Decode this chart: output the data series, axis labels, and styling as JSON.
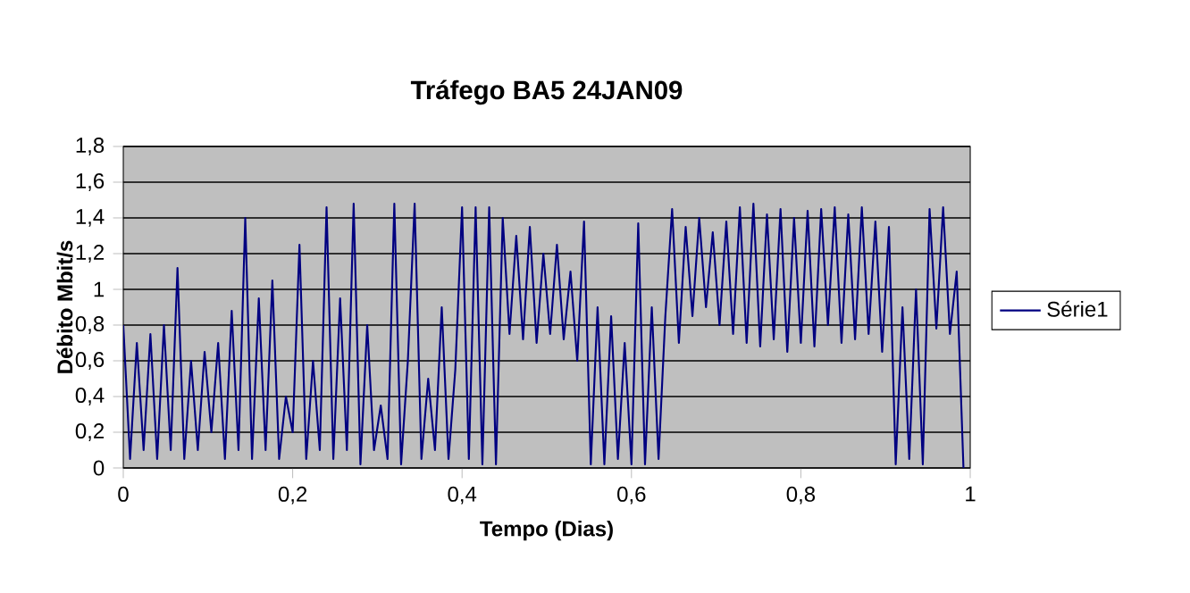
{
  "chart_data": {
    "type": "line",
    "title": "Tráfego BA5 24JAN09",
    "xlabel": "Tempo (Dias)",
    "ylabel": "Débito Mbit/s",
    "xlim": [
      0,
      1
    ],
    "ylim": [
      0,
      1.8
    ],
    "xticks": [
      0,
      {
        "value": 0.2,
        "label": "0,2"
      },
      {
        "value": 0.4,
        "label": "0,4"
      },
      {
        "value": 0.6,
        "label": "0,6"
      },
      {
        "value": 0.8,
        "label": "0,8"
      },
      1
    ],
    "yticks": [
      0,
      {
        "value": 0.2,
        "label": "0,2"
      },
      {
        "value": 0.4,
        "label": "0,4"
      },
      {
        "value": 0.6,
        "label": "0,6"
      },
      {
        "value": 0.8,
        "label": "0,8"
      },
      1,
      {
        "value": 1.2,
        "label": "1,2"
      },
      {
        "value": 1.4,
        "label": "1,4"
      },
      {
        "value": 1.6,
        "label": "1,6"
      },
      {
        "value": 1.8,
        "label": "1,8"
      }
    ],
    "grid": "y",
    "legend": "right",
    "marker": "none",
    "line_style": "solid",
    "x": [
      0,
      0.008,
      0.016,
      0.024,
      0.032,
      0.04,
      0.048,
      0.056,
      0.064,
      0.072,
      0.08,
      0.088,
      0.096,
      0.104,
      0.112,
      0.12,
      0.128,
      0.136,
      0.144,
      0.152,
      0.16,
      0.168,
      0.176,
      0.184,
      0.192,
      0.2,
      0.208,
      0.216,
      0.224,
      0.232,
      0.24,
      0.248,
      0.256,
      0.264,
      0.272,
      0.28,
      0.288,
      0.296,
      0.304,
      0.312,
      0.32,
      0.328,
      0.336,
      0.344,
      0.352,
      0.36,
      0.368,
      0.376,
      0.384,
      0.392,
      0.4,
      0.408,
      0.416,
      0.424,
      0.432,
      0.44,
      0.448,
      0.456,
      0.464,
      0.472,
      0.48,
      0.488,
      0.496,
      0.504,
      0.512,
      0.52,
      0.528,
      0.536,
      0.544,
      0.552,
      0.56,
      0.568,
      0.576,
      0.584,
      0.592,
      0.6,
      0.608,
      0.616,
      0.624,
      0.632,
      0.64,
      0.648,
      0.656,
      0.664,
      0.672,
      0.68,
      0.688,
      0.696,
      0.704,
      0.712,
      0.72,
      0.728,
      0.736,
      0.744,
      0.752,
      0.76,
      0.768,
      0.776,
      0.784,
      0.792,
      0.8,
      0.808,
      0.816,
      0.824,
      0.832,
      0.84,
      0.848,
      0.856,
      0.864,
      0.872,
      0.88,
      0.888,
      0.896,
      0.904,
      0.912,
      0.92,
      0.928,
      0.936,
      0.944,
      0.952,
      0.96,
      0.968,
      0.976,
      0.984,
      0.992
    ],
    "series": [
      {
        "name": "Série1",
        "color": "#000080",
        "values": [
          0.8,
          0.05,
          0.7,
          0.1,
          0.75,
          0.05,
          0.8,
          0.1,
          1.12,
          0.05,
          0.6,
          0.1,
          0.65,
          0.2,
          0.7,
          0.05,
          0.88,
          0.1,
          1.4,
          0.05,
          0.95,
          0.1,
          1.05,
          0.05,
          0.4,
          0.2,
          1.25,
          0.05,
          0.6,
          0.1,
          1.46,
          0.05,
          0.95,
          0.1,
          1.48,
          0.02,
          0.8,
          0.1,
          0.35,
          0.05,
          1.48,
          0.02,
          0.6,
          1.48,
          0.05,
          0.5,
          0.1,
          0.9,
          0.05,
          0.55,
          1.46,
          0.05,
          1.46,
          0.02,
          1.46,
          0.02,
          1.4,
          0.75,
          1.3,
          0.72,
          1.35,
          0.7,
          1.2,
          0.75,
          1.25,
          0.72,
          1.1,
          0.6,
          1.38,
          0.02,
          0.9,
          0.02,
          0.85,
          0.05,
          0.7,
          0.02,
          1.37,
          0.02,
          0.9,
          0.05,
          0.85,
          1.45,
          0.7,
          1.35,
          0.85,
          1.4,
          0.9,
          1.32,
          0.8,
          1.38,
          0.75,
          1.46,
          0.7,
          1.48,
          0.68,
          1.42,
          0.72,
          1.45,
          0.65,
          1.4,
          0.7,
          1.44,
          0.68,
          1.45,
          0.8,
          1.46,
          0.7,
          1.42,
          0.72,
          1.46,
          0.75,
          1.38,
          0.65,
          1.35,
          0.02,
          0.9,
          0.05,
          1.0,
          0.02,
          1.45,
          0.78,
          1.46,
          0.75,
          1.1,
          0.0
        ]
      }
    ]
  }
}
